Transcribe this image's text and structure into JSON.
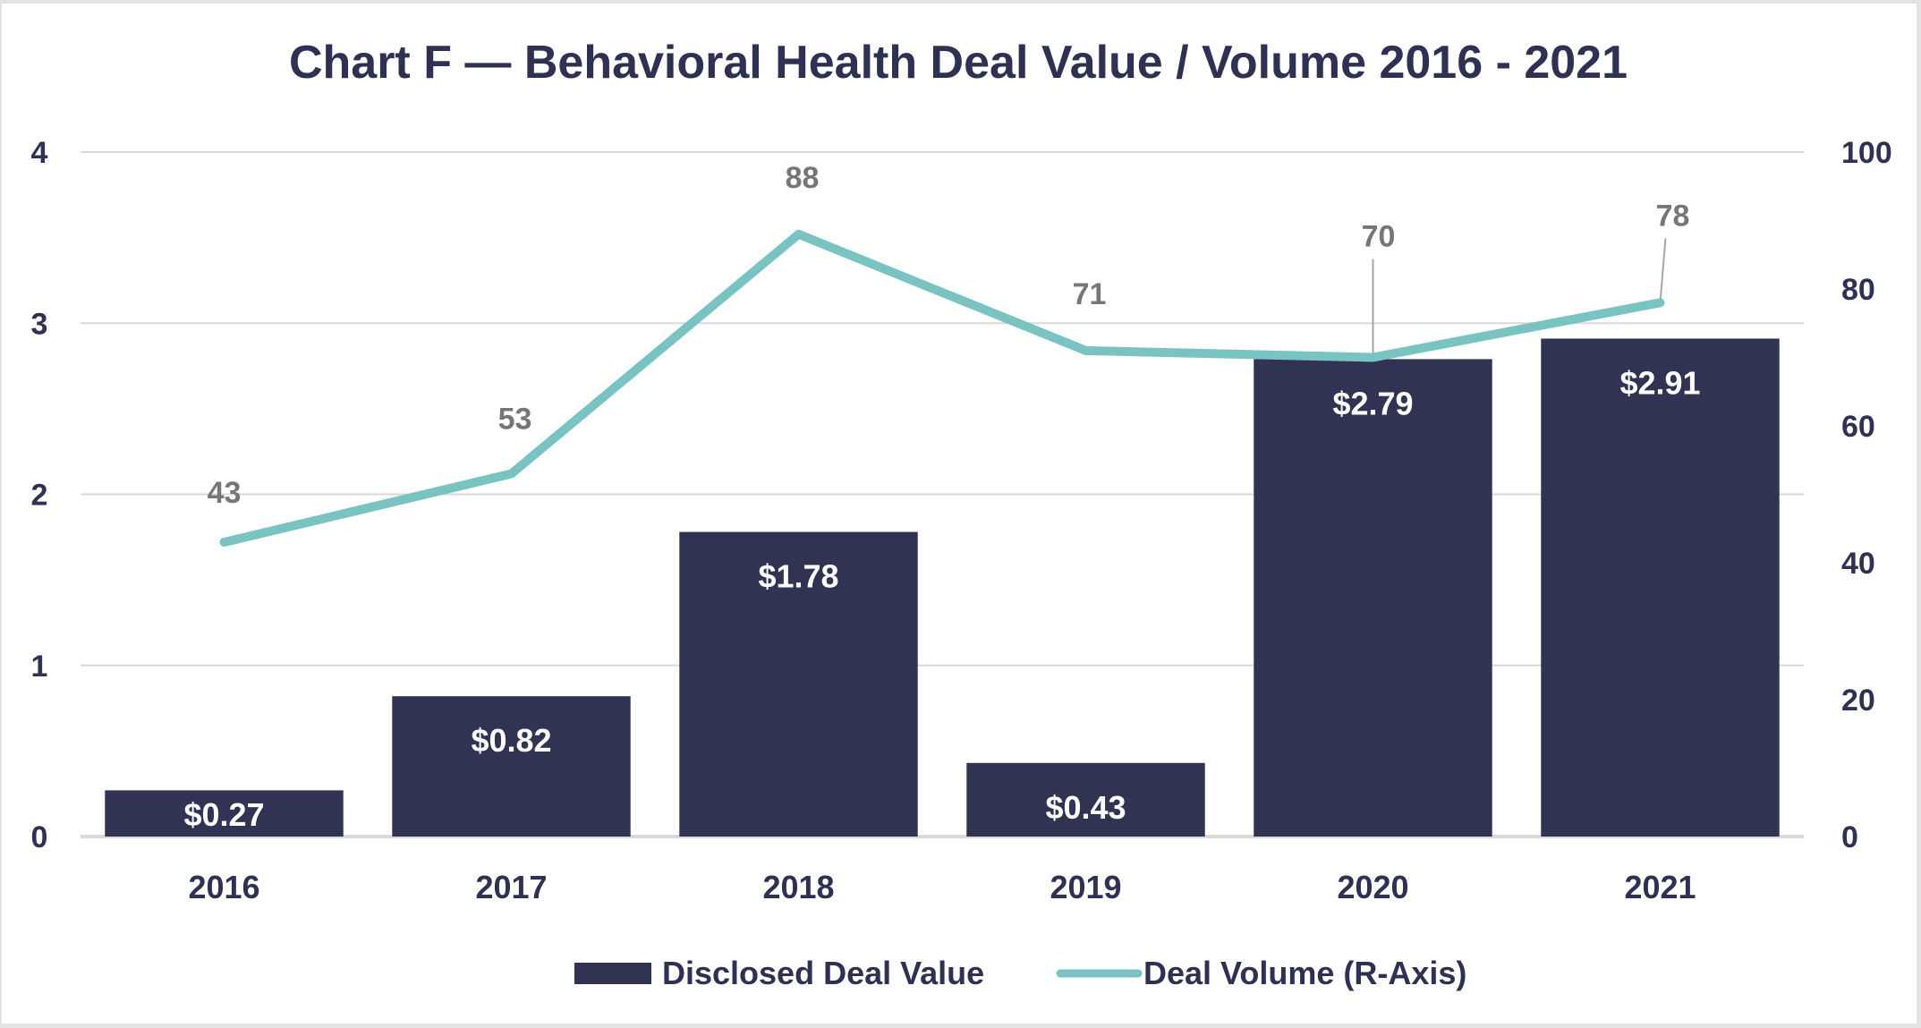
{
  "chart_data": {
    "type": "bar",
    "title": "Chart F — Behavioral Health Deal Value / Volume 2016 - 2021",
    "categories": [
      "2016",
      "2017",
      "2018",
      "2019",
      "2020",
      "2021"
    ],
    "series": [
      {
        "name": "Disclosed Deal Value",
        "type": "bar",
        "axis": "left",
        "values": [
          0.27,
          0.82,
          1.78,
          0.43,
          2.79,
          2.91
        ],
        "labels": [
          "$0.27",
          "$0.82",
          "$1.78",
          "$0.43",
          "$2.79",
          "$2.91"
        ],
        "color": "#303352"
      },
      {
        "name": "Deal Volume (R-Axis)",
        "type": "line",
        "axis": "right",
        "values": [
          43,
          53,
          88,
          71,
          70,
          78
        ],
        "labels": [
          "43",
          "53",
          "88",
          "71",
          "70",
          "78"
        ],
        "color": "#79C4C3"
      }
    ],
    "left_axis": {
      "ylim": [
        0,
        4
      ],
      "ticks": [
        "0",
        "1",
        "2",
        "3",
        "4"
      ]
    },
    "right_axis": {
      "ylim": [
        0,
        100
      ],
      "ticks": [
        "0",
        "20",
        "40",
        "60",
        "80",
        "100"
      ]
    },
    "xlabel": "",
    "ylabel": "",
    "grid": true,
    "legend": "bottom-center"
  },
  "colors": {
    "title": "#2E3152",
    "axis_text": "#2E3152",
    "line_label": "#767676",
    "grid": "#D9D9D9",
    "leader": "#A6A6A6"
  }
}
